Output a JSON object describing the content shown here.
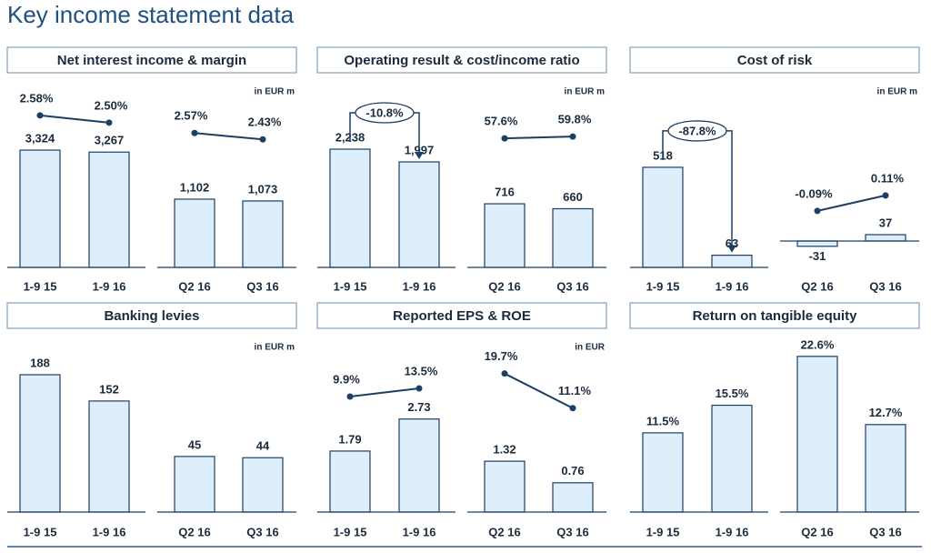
{
  "title": "Key income statement data",
  "chart_data": [
    {
      "type": "bar",
      "title": "Net interest income & margin",
      "unit": "in EUR m",
      "color": "#deeefb",
      "groups": [
        {
          "categories": [
            "1-9 15",
            "1-9 16"
          ],
          "values": [
            3324,
            3267
          ],
          "value_labels": [
            "3,324",
            "3,267"
          ],
          "ylim": [
            0,
            5000
          ],
          "line": {
            "values": [
              2.58,
              2.5
            ],
            "value_labels": [
              "2.58%",
              "2.50%"
            ]
          },
          "y2lim": [
            0.9,
            2.85
          ]
        },
        {
          "categories": [
            "Q2 16",
            "Q3 16"
          ],
          "values": [
            1102,
            1073
          ],
          "value_labels": [
            "1,102",
            "1,073"
          ],
          "ylim": [
            0,
            2850
          ],
          "line": {
            "values": [
              2.57,
              2.43
            ],
            "value_labels": [
              "2.57%",
              "2.43%"
            ]
          },
          "y2lim": [
            -0.4,
            3.5
          ]
        }
      ]
    },
    {
      "type": "bar",
      "title": "Operating result & cost/income ratio",
      "unit": "in EUR m",
      "color": "#deeefb",
      "groups": [
        {
          "categories": [
            "1-9 15",
            "1-9 16"
          ],
          "values": [
            2238,
            1997
          ],
          "value_labels": [
            "2,238",
            "1,997"
          ],
          "ylim": [
            0,
            3340
          ],
          "annotation": "-10.8%"
        },
        {
          "categories": [
            "Q2 16",
            "Q3 16"
          ],
          "values": [
            716,
            660
          ],
          "ylim": [
            0,
            1985
          ],
          "line": {
            "values": [
              57.6,
              59.8
            ],
            "value_labels": [
              "57.6%",
              "59.8%"
            ]
          },
          "y2lim": [
            -98.3,
            114.9
          ]
        }
      ]
    },
    {
      "type": "bar",
      "title": "Cost of risk",
      "unit": "in EUR m",
      "color": "#deeefb",
      "groups": [
        {
          "categories": [
            "1-9 15",
            "1-9 16"
          ],
          "values": [
            518,
            63
          ],
          "ylim": [
            0,
            913
          ],
          "annotation": "-87.8%"
        },
        {
          "categories": [
            "Q2 16",
            "Q3 16"
          ],
          "values": [
            -31,
            37
          ],
          "ylim": [
            -154,
            875
          ],
          "line": {
            "values": [
              -0.09,
              0.11
            ],
            "value_labels": [
              "-0.09%",
              "0.11%"
            ]
          },
          "y2lim": [
            -0.82,
            1.46
          ]
        }
      ]
    },
    {
      "type": "bar",
      "title": "Banking levies",
      "unit": "in EUR m",
      "color": "#deeefb",
      "groups": [
        {
          "categories": [
            "1-9 15",
            "1-9 16"
          ],
          "values": [
            188,
            152
          ],
          "ylim": [
            0,
            221.6
          ]
        },
        {
          "categories": [
            "Q2 16",
            "Q3 16"
          ],
          "values": [
            45,
            44
          ],
          "ylim": [
            0,
            131
          ]
        }
      ]
    },
    {
      "type": "bar",
      "title": "Reported EPS & ROE",
      "unit": "in EUR",
      "color": "#deeefb",
      "groups": [
        {
          "categories": [
            "1-9 15",
            "1-9 16"
          ],
          "values": [
            1.79,
            2.73
          ],
          "ylim": [
            0,
            4.75
          ],
          "line": {
            "values": [
              9.9,
              13.5
            ],
            "value_labels": [
              "9.9%",
              "13.5%"
            ]
          },
          "y2lim": [
            -40.9,
            30.3
          ]
        },
        {
          "categories": [
            "Q2 16",
            "Q3 16"
          ],
          "values": [
            1.32,
            0.76
          ],
          "ylim": [
            0,
            4.2
          ],
          "line": {
            "values": [
              19.7,
              11.1
            ],
            "value_labels": [
              "19.7%",
              "11.1%"
            ]
          },
          "y2lim": [
            -14.7,
            25.5
          ]
        }
      ]
    },
    {
      "type": "bar",
      "title": "Return on tangible equity",
      "color": "#deeefb",
      "groups": [
        {
          "categories": [
            "1-9 15",
            "1-9 16"
          ],
          "values": [
            11.5,
            15.5
          ],
          "value_labels": [
            "11.5%",
            "15.5%"
          ],
          "ylim": [
            0,
            23.5
          ]
        },
        {
          "categories": [
            "Q2 16",
            "Q3 16"
          ],
          "values": [
            22.6,
            12.7
          ],
          "value_labels": [
            "22.6%",
            "12.7%"
          ],
          "ylim": [
            0,
            23.5
          ]
        }
      ]
    }
  ]
}
